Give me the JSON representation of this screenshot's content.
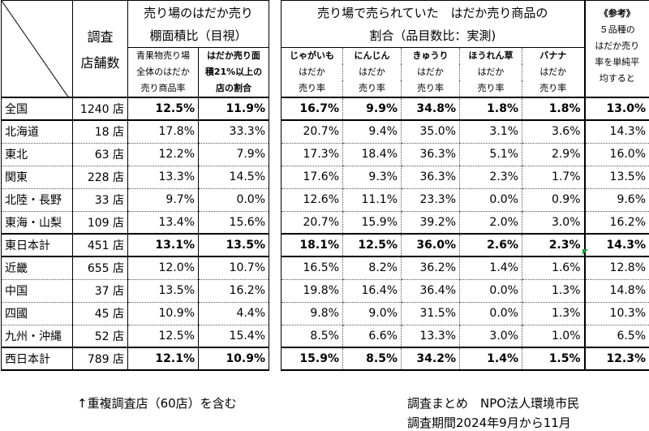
{
  "left_header": {
    "shops_label_1": "調査",
    "shops_label_2": "店舗数",
    "group_title_1": "売り場のはだか売り",
    "group_title_2": "棚面積比（目視）",
    "col1_lines": [
      "青果物売り場",
      "全体のはだか",
      "売り商品率"
    ],
    "col2_lines": [
      "はだか売り面",
      "積21%以上の",
      "店の割合"
    ]
  },
  "right_header": {
    "group_title_1": "売り場で売られていた　はだか売り商品の",
    "group_title_2": "割合（品目数比：実測)",
    "items": [
      {
        "name": "じゃがいも",
        "sub1": "はだか",
        "sub2": "売り率"
      },
      {
        "name": "にんじん",
        "sub1": "はだか",
        "sub2": "売り率"
      },
      {
        "name": "きゅうり",
        "sub1": "はだか",
        "sub2": "売り率"
      },
      {
        "name": "ほうれん草",
        "sub1": "はだか",
        "sub2": "売り率"
      },
      {
        "name": "バナナ",
        "sub1": "はだか",
        "sub2": "売り率"
      }
    ],
    "ref_lines": [
      "《参考》",
      "５品種の",
      "はだか売り",
      "率を単純平",
      "均すると"
    ]
  },
  "rows": [
    {
      "region": "全国",
      "shops": "1240 店",
      "shelf_rate": "12.5%",
      "over21": "11.9%",
      "potato": "16.7%",
      "carrot": "9.9%",
      "cucumber": "34.8%",
      "spinach": "1.8%",
      "banana": "1.8%",
      "avg": "13.0%",
      "bold": true
    },
    {
      "region": "北海道",
      "shops": "18 店",
      "shelf_rate": "17.8%",
      "over21": "33.3%",
      "potato": "20.7%",
      "carrot": "9.4%",
      "cucumber": "35.0%",
      "spinach": "3.1%",
      "banana": "3.6%",
      "avg": "14.3%",
      "bold": false
    },
    {
      "region": "東北",
      "shops": "63 店",
      "shelf_rate": "12.2%",
      "over21": "7.9%",
      "potato": "17.3%",
      "carrot": "18.4%",
      "cucumber": "36.3%",
      "spinach": "5.1%",
      "banana": "2.9%",
      "avg": "16.0%",
      "bold": false
    },
    {
      "region": "関東",
      "shops": "228 店",
      "shelf_rate": "13.3%",
      "over21": "14.5%",
      "potato": "17.6%",
      "carrot": "9.3%",
      "cucumber": "36.3%",
      "spinach": "2.3%",
      "banana": "1.7%",
      "avg": "13.5%",
      "bold": false
    },
    {
      "region": "北陸・長野",
      "shops": "33 店",
      "shelf_rate": "9.7%",
      "over21": "0.0%",
      "potato": "12.6%",
      "carrot": "11.1%",
      "cucumber": "23.3%",
      "spinach": "0.0%",
      "banana": "0.9%",
      "avg": "9.6%",
      "bold": false
    },
    {
      "region": "東海・山梨",
      "shops": "109 店",
      "shelf_rate": "13.4%",
      "over21": "15.6%",
      "potato": "20.7%",
      "carrot": "15.9%",
      "cucumber": "39.2%",
      "spinach": "2.0%",
      "banana": "3.0%",
      "avg": "16.2%",
      "bold": false
    },
    {
      "region": "東日本計",
      "shops": "451 店",
      "shelf_rate": "13.1%",
      "over21": "13.5%",
      "potato": "18.1%",
      "carrot": "12.5%",
      "cucumber": "36.0%",
      "spinach": "2.6%",
      "banana": "2.3%",
      "avg": "14.3%",
      "bold": true
    },
    {
      "region": "近畿",
      "shops": "655 店",
      "shelf_rate": "12.0%",
      "over21": "10.7%",
      "potato": "16.5%",
      "carrot": "8.2%",
      "cucumber": "36.2%",
      "spinach": "1.4%",
      "banana": "1.6%",
      "avg": "12.8%",
      "bold": false
    },
    {
      "region": "中国",
      "shops": "37 店",
      "shelf_rate": "13.5%",
      "over21": "16.2%",
      "potato": "19.8%",
      "carrot": "16.4%",
      "cucumber": "36.4%",
      "spinach": "0.0%",
      "banana": "1.3%",
      "avg": "14.8%",
      "bold": false
    },
    {
      "region": "四國",
      "shops": "45 店",
      "shelf_rate": "10.9%",
      "over21": "4.4%",
      "potato": "9.8%",
      "carrot": "9.0%",
      "cucumber": "31.5%",
      "spinach": "0.0%",
      "banana": "1.3%",
      "avg": "10.3%",
      "bold": false
    },
    {
      "region": "九州・沖縄",
      "shops": "52 店",
      "shelf_rate": "12.5%",
      "over21": "15.4%",
      "potato": "8.5%",
      "carrot": "6.6%",
      "cucumber": "13.3%",
      "spinach": "3.0%",
      "banana": "1.0%",
      "avg": "6.5%",
      "bold": false
    },
    {
      "region": "西日本計",
      "shops": "789 店",
      "shelf_rate": "12.1%",
      "over21": "10.9%",
      "potato": "15.9%",
      "carrot": "8.5%",
      "cucumber": "34.2%",
      "spinach": "1.4%",
      "banana": "1.5%",
      "avg": "12.3%",
      "bold": true
    }
  ],
  "footer": {
    "left_note": "↑重複調査店（60店）を含む",
    "right_note_1": "調査まとめ　NPO法人環境市民",
    "right_note_2": "調査期間2024年9月から11月"
  },
  "colors": {
    "marker": "#1e9a3a"
  }
}
